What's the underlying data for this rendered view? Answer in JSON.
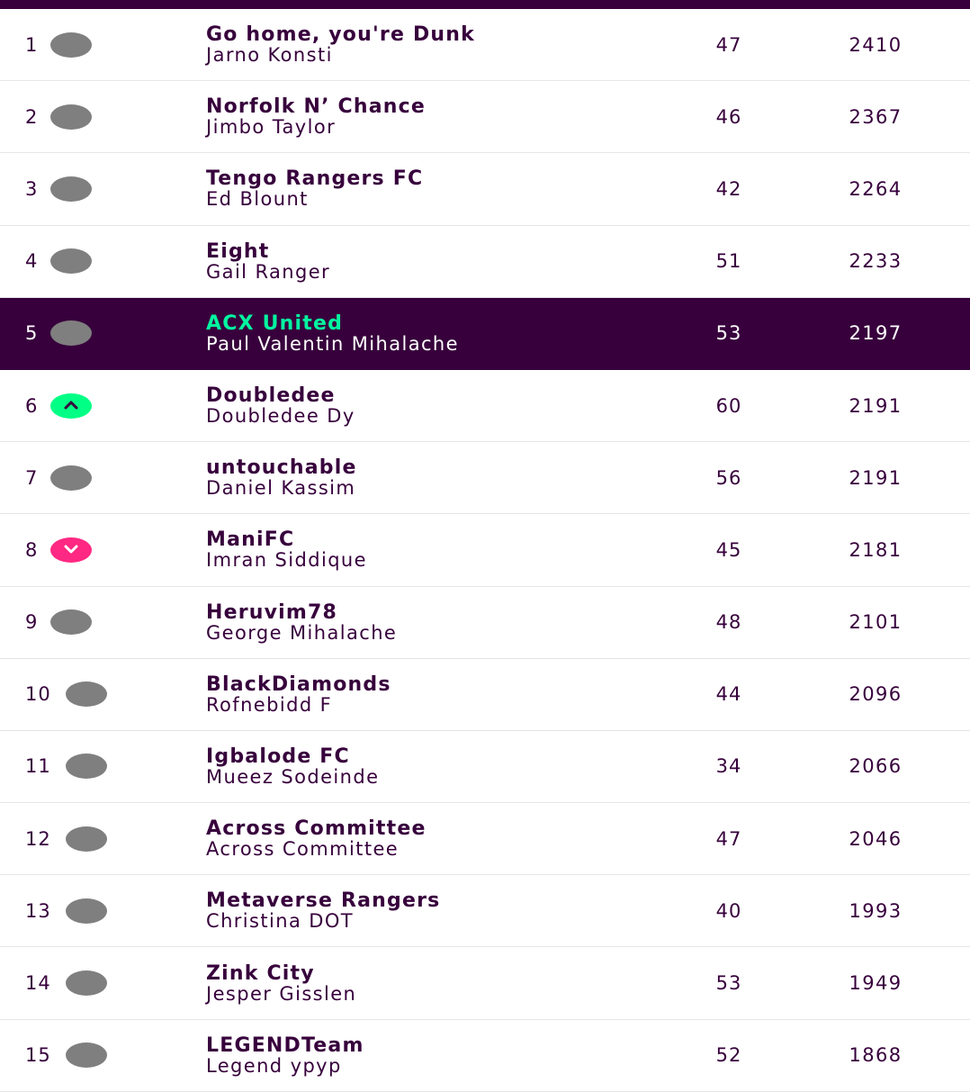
{
  "standings": [
    {
      "rank": "1",
      "movement": "same",
      "team": "Go home, you're Dunk",
      "manager": "Jarno Konsti",
      "gw": "47",
      "total": "2410"
    },
    {
      "rank": "2",
      "movement": "same",
      "team": "Norfolk N’ Chance",
      "manager": "Jimbo Taylor",
      "gw": "46",
      "total": "2367"
    },
    {
      "rank": "3",
      "movement": "same",
      "team": "Tengo Rangers FC",
      "manager": "Ed Blount",
      "gw": "42",
      "total": "2264"
    },
    {
      "rank": "4",
      "movement": "same",
      "team": "Eight",
      "manager": "Gail Ranger",
      "gw": "51",
      "total": "2233"
    },
    {
      "rank": "5",
      "movement": "same",
      "team": "ACX United",
      "manager": "Paul Valentin Mihalache",
      "gw": "53",
      "total": "2197",
      "highlight": true
    },
    {
      "rank": "6",
      "movement": "up",
      "team": "Doubledee",
      "manager": "Doubledee Dy",
      "gw": "60",
      "total": "2191"
    },
    {
      "rank": "7",
      "movement": "same",
      "team": "untouchable",
      "manager": "Daniel Kassim",
      "gw": "56",
      "total": "2191"
    },
    {
      "rank": "8",
      "movement": "down",
      "team": "ManiFC",
      "manager": "Imran Siddique",
      "gw": "45",
      "total": "2181"
    },
    {
      "rank": "9",
      "movement": "same",
      "team": "Heruvim78",
      "manager": "George Mihalache",
      "gw": "48",
      "total": "2101"
    },
    {
      "rank": "10",
      "movement": "same",
      "team": "BlackDiamonds",
      "manager": "Rofnebidd F",
      "gw": "44",
      "total": "2096"
    },
    {
      "rank": "11",
      "movement": "same",
      "team": "Igbalode FC",
      "manager": "Mueez Sodeinde",
      "gw": "34",
      "total": "2066"
    },
    {
      "rank": "12",
      "movement": "same",
      "team": "Across Committee",
      "manager": "Across Committee",
      "gw": "47",
      "total": "2046"
    },
    {
      "rank": "13",
      "movement": "same",
      "team": "Metaverse Rangers",
      "manager": "Christina DOT",
      "gw": "40",
      "total": "1993"
    },
    {
      "rank": "14",
      "movement": "same",
      "team": "Zink City",
      "manager": "Jesper Gisslen",
      "gw": "53",
      "total": "1949"
    },
    {
      "rank": "15",
      "movement": "same",
      "team": "LEGENDTeam",
      "manager": "Legend ypyp",
      "gw": "52",
      "total": "1868"
    }
  ],
  "icons": {
    "up": "chevron-up-icon",
    "down": "chevron-down-icon"
  },
  "colors": {
    "brand_purple": "#37003c",
    "highlight_team": "#04f5a0",
    "up": "#00ff85",
    "down": "#ff2882",
    "same": "#7f7f7f"
  }
}
